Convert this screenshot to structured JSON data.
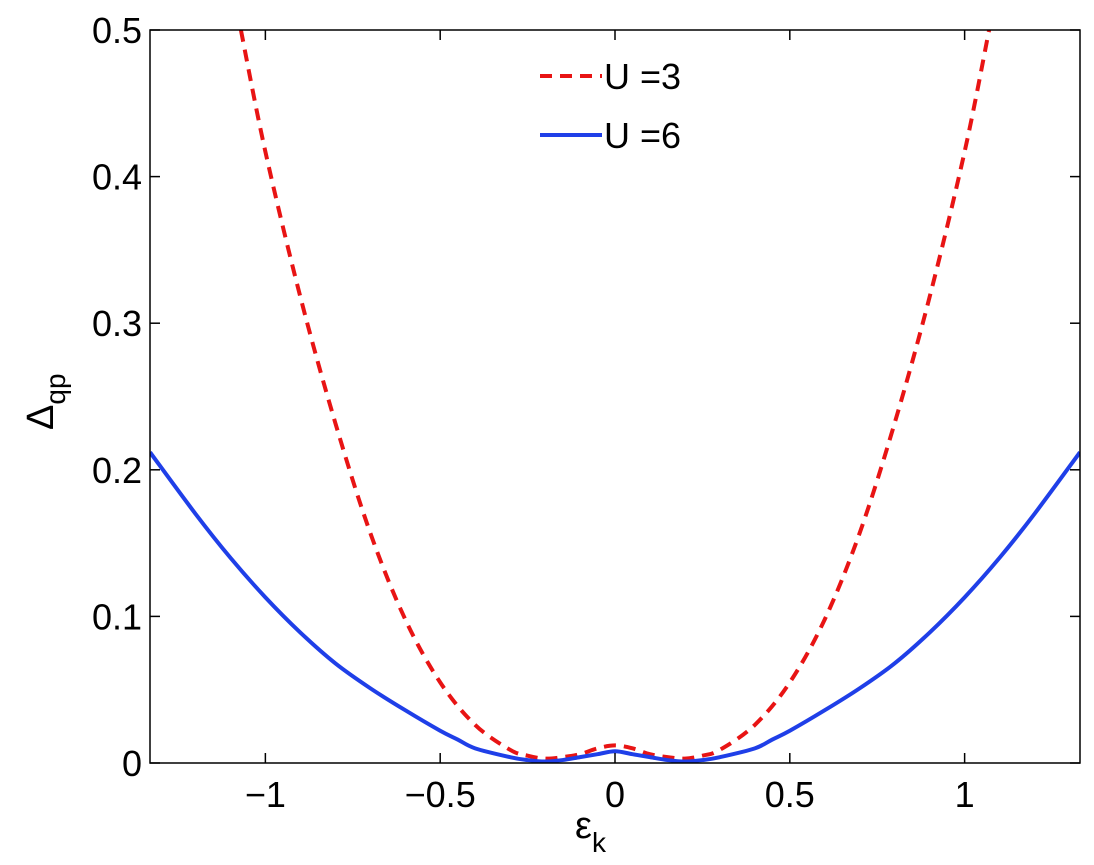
{
  "chart_data": {
    "type": "line",
    "xlabel": "ε",
    "xlabel_sub": "k",
    "ylabel": "Δ",
    "ylabel_sub": "qp",
    "xlim": [
      -1.33,
      1.33
    ],
    "ylim": [
      0,
      0.5
    ],
    "xticks": [
      -1,
      -0.5,
      0,
      0.5,
      1
    ],
    "xtick_labels": [
      "−1",
      "−0.5",
      "0",
      "0.5",
      "1"
    ],
    "yticks": [
      0,
      0.1,
      0.2,
      0.3,
      0.4,
      0.5
    ],
    "ytick_labels": [
      "0",
      "0.1",
      "0.2",
      "0.3",
      "0.4",
      "0.5"
    ],
    "legend_position": "top-center",
    "series": [
      {
        "name": "U =3",
        "color": "#e81414",
        "style": "dashed",
        "x": [
          -1.07,
          -1.0,
          -0.9,
          -0.8,
          -0.7,
          -0.6,
          -0.5,
          -0.4,
          -0.3,
          -0.25,
          -0.2,
          -0.15,
          -0.1,
          -0.05,
          0.0,
          0.05,
          0.1,
          0.15,
          0.2,
          0.25,
          0.3,
          0.4,
          0.5,
          0.6,
          0.7,
          0.8,
          0.9,
          1.0,
          1.07
        ],
        "y": [
          0.5,
          0.417,
          0.318,
          0.232,
          0.157,
          0.098,
          0.055,
          0.026,
          0.009,
          0.005,
          0.003,
          0.004,
          0.006,
          0.01,
          0.012,
          0.01,
          0.006,
          0.004,
          0.003,
          0.005,
          0.009,
          0.026,
          0.055,
          0.098,
          0.157,
          0.232,
          0.318,
          0.417,
          0.5
        ]
      },
      {
        "name": "U =6",
        "color": "#1f3fe8",
        "style": "solid",
        "x": [
          -1.33,
          -1.2,
          -1.1,
          -1.0,
          -0.9,
          -0.8,
          -0.7,
          -0.6,
          -0.5,
          -0.45,
          -0.4,
          -0.3,
          -0.25,
          -0.2,
          -0.15,
          -0.1,
          -0.05,
          0.0,
          0.05,
          0.1,
          0.15,
          0.2,
          0.25,
          0.3,
          0.4,
          0.45,
          0.5,
          0.6,
          0.7,
          0.8,
          0.9,
          1.0,
          1.1,
          1.2,
          1.33
        ],
        "y": [
          0.212,
          0.17,
          0.14,
          0.113,
          0.089,
          0.068,
          0.051,
          0.036,
          0.022,
          0.016,
          0.01,
          0.004,
          0.002,
          0.001,
          0.002,
          0.004,
          0.006,
          0.008,
          0.006,
          0.004,
          0.002,
          0.001,
          0.002,
          0.004,
          0.01,
          0.016,
          0.022,
          0.036,
          0.051,
          0.068,
          0.089,
          0.113,
          0.14,
          0.17,
          0.212
        ]
      }
    ]
  }
}
